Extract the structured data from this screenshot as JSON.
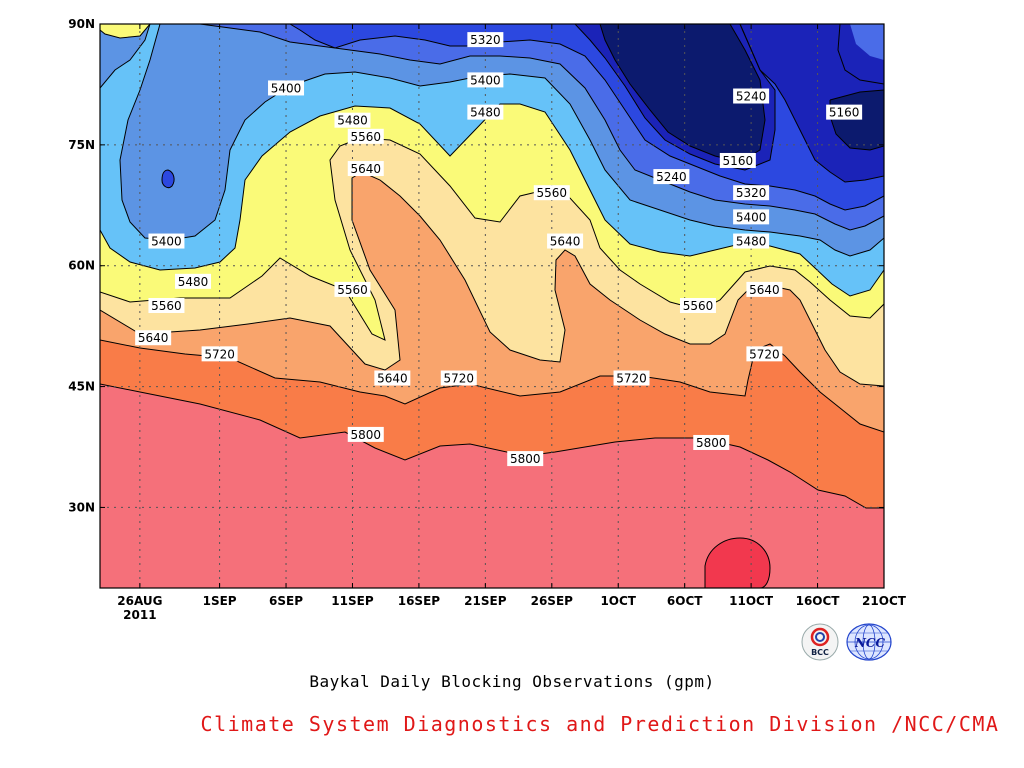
{
  "chart_data": {
    "type": "contour",
    "title": "Baykal Daily Blocking Observations (gpm)",
    "x_tick_labels": [
      "26AUG",
      "1SEP",
      "6SEP",
      "11SEP",
      "16SEP",
      "21SEP",
      "26SEP",
      "1OCT",
      "6OCT",
      "11OCT",
      "16OCT",
      "21OCT"
    ],
    "x_year_label": "2011",
    "x_range": [
      "23AUG2011",
      "21OCT2011"
    ],
    "y_tick_labels": [
      "30N",
      "45N",
      "60N",
      "75N",
      "90N"
    ],
    "y_range": [
      20,
      90
    ],
    "contour_levels": [
      5160,
      5240,
      5320,
      5400,
      5480,
      5560,
      5640,
      5720,
      5800,
      5880
    ],
    "fill_colors": {
      "lt5160": "#0c1a6e",
      "5160_5240": "#1b23b8",
      "5240_5320": "#2c48e0",
      "5320_5400": "#4a6ce8",
      "5400_5480": "#5c94e4",
      "5480_5560": "#66c2f8",
      "5560_5640": "#fafa78",
      "5640_5720": "#fde3a0",
      "5720_5800": "#f9a46c",
      "5800_5880": "#f97c48",
      "gt5880": "#f5707a",
      "peak": "#f2384e"
    },
    "contour_labels": [
      {
        "value": "5320",
        "date": "21SEP",
        "lat": 88
      },
      {
        "value": "5400",
        "date": "21SEP",
        "lat": 83
      },
      {
        "value": "5400",
        "date": "6SEP",
        "lat": 82
      },
      {
        "value": "5480",
        "date": "21SEP",
        "lat": 79
      },
      {
        "value": "5480",
        "date": "11SEP",
        "lat": 78
      },
      {
        "value": "5560",
        "date": "12SEP",
        "lat": 76
      },
      {
        "value": "5240",
        "date": "11OCT",
        "lat": 81
      },
      {
        "value": "5160",
        "date": "18OCT",
        "lat": 79
      },
      {
        "value": "5240",
        "date": "5OCT",
        "lat": 71
      },
      {
        "value": "5160",
        "date": "10OCT",
        "lat": 73
      },
      {
        "value": "5320",
        "date": "11OCT",
        "lat": 69
      },
      {
        "value": "5400",
        "date": "11OCT",
        "lat": 66
      },
      {
        "value": "5480",
        "date": "11OCT",
        "lat": 63
      },
      {
        "value": "5640",
        "date": "12SEP",
        "lat": 72
      },
      {
        "value": "5560",
        "date": "26SEP",
        "lat": 69
      },
      {
        "value": "5640",
        "date": "27SEP",
        "lat": 63
      },
      {
        "value": "5400",
        "date": "28AUG",
        "lat": 63
      },
      {
        "value": "5480",
        "date": "30AUG",
        "lat": 58
      },
      {
        "value": "5560",
        "date": "28AUG",
        "lat": 55
      },
      {
        "value": "5560",
        "date": "11SEP",
        "lat": 57
      },
      {
        "value": "5560",
        "date": "7OCT",
        "lat": 55
      },
      {
        "value": "5640",
        "date": "12OCT",
        "lat": 57
      },
      {
        "value": "5640",
        "date": "27AUG",
        "lat": 51
      },
      {
        "value": "5720",
        "date": "1SEP",
        "lat": 49
      },
      {
        "value": "5720",
        "date": "12OCT",
        "lat": 49
      },
      {
        "value": "5640",
        "date": "14SEP",
        "lat": 46
      },
      {
        "value": "5720",
        "date": "19SEP",
        "lat": 46
      },
      {
        "value": "5720",
        "date": "2OCT",
        "lat": 46
      },
      {
        "value": "5800",
        "date": "12SEP",
        "lat": 39
      },
      {
        "value": "5800",
        "date": "8OCT",
        "lat": 38
      },
      {
        "value": "5800",
        "date": "24SEP",
        "lat": 36
      }
    ]
  },
  "credit": "Climate System Diagnostics and Prediction Division /NCC/CMA",
  "logos": [
    "bcc-logo",
    "ncc-logo"
  ],
  "logo_text": {
    "bcc": "BCC",
    "ncc": "NCC"
  }
}
